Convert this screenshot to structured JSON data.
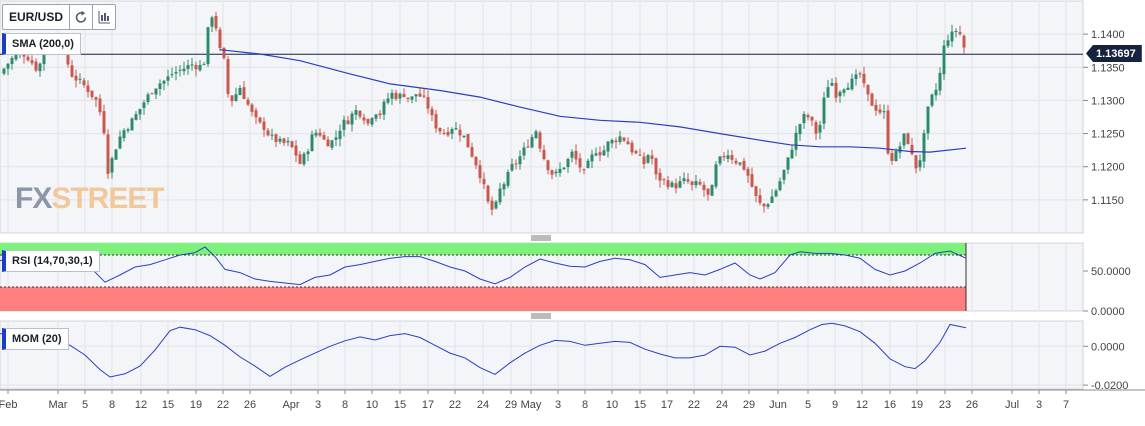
{
  "toolbar": {
    "symbol": "EUR/USD",
    "refresh_icon": "refresh-icon",
    "chart_type_icon": "candlestick-icon"
  },
  "indicators": {
    "sma": "SMA (200,0)",
    "rsi": "RSI (14,70,30,1)",
    "mom": "MOM (20)"
  },
  "price_label": "1.13697",
  "logo": {
    "fx": "FX",
    "street": "STREET"
  },
  "colors": {
    "up": "#2f8a6d",
    "down": "#c9594c",
    "sma": "#2b3fc2",
    "rsi_overbought": "#7df27a",
    "rsi_oversold": "#ff7f7f",
    "price_line": "#15233f"
  },
  "chart_data": [
    {
      "type": "candlestick",
      "symbol": "EUR/USD",
      "x_ticks": [
        "Feb",
        "Mar",
        "5",
        "8",
        "12",
        "15",
        "19",
        "22",
        "26",
        "Apr",
        "3",
        "8",
        "10",
        "15",
        "17",
        "22",
        "24",
        "29",
        "May",
        "3",
        "8",
        "10",
        "15",
        "17",
        "22",
        "24",
        "29",
        "Jun",
        "5",
        "9",
        "12",
        "16",
        "19",
        "23",
        "26",
        "Jul",
        "3",
        "7"
      ],
      "y_ticks": [
        "1.1400",
        "1.1350",
        "1.1300",
        "1.1250",
        "1.1200",
        "1.1150"
      ],
      "y_range": [
        1.11,
        1.145
      ],
      "current_price": 1.13697,
      "close_path": [
        [
          0,
          1.134
        ],
        [
          10,
          1.136
        ],
        [
          20,
          1.1375
        ],
        [
          28,
          1.1365
        ],
        [
          38,
          1.1345
        ],
        [
          45,
          1.138
        ],
        [
          56,
          1.139
        ],
        [
          64,
          1.1375
        ],
        [
          71,
          1.134
        ],
        [
          78,
          1.133
        ],
        [
          86,
          1.132
        ],
        [
          96,
          1.13
        ],
        [
          103,
          1.127
        ],
        [
          108,
          1.1195
        ],
        [
          113,
          1.1215
        ],
        [
          118,
          1.124
        ],
        [
          124,
          1.1255
        ],
        [
          130,
          1.1265
        ],
        [
          137,
          1.128
        ],
        [
          145,
          1.13
        ],
        [
          152,
          1.1315
        ],
        [
          158,
          1.1325
        ],
        [
          165,
          1.133
        ],
        [
          172,
          1.134
        ],
        [
          179,
          1.1345
        ],
        [
          186,
          1.135
        ],
        [
          193,
          1.1355
        ],
        [
          199,
          1.135
        ],
        [
          205,
          1.136
        ],
        [
          210,
          1.1435
        ],
        [
          215,
          1.142
        ],
        [
          220,
          1.1375
        ],
        [
          225,
          1.1355
        ],
        [
          229,
          1.1295
        ],
        [
          234,
          1.1305
        ],
        [
          240,
          1.132
        ],
        [
          246,
          1.13
        ],
        [
          252,
          1.128
        ],
        [
          258,
          1.1265
        ],
        [
          264,
          1.126
        ],
        [
          270,
          1.1245
        ],
        [
          276,
          1.124
        ],
        [
          282,
          1.1235
        ],
        [
          288,
          1.1235
        ],
        [
          294,
          1.1225
        ],
        [
          300,
          1.1205
        ],
        [
          306,
          1.122
        ],
        [
          312,
          1.1245
        ],
        [
          318,
          1.1255
        ],
        [
          324,
          1.124
        ],
        [
          330,
          1.1235
        ],
        [
          336,
          1.1245
        ],
        [
          342,
          1.1265
        ],
        [
          348,
          1.127
        ],
        [
          355,
          1.1285
        ],
        [
          362,
          1.128
        ],
        [
          368,
          1.1265
        ],
        [
          374,
          1.1285
        ],
        [
          380,
          1.128
        ],
        [
          386,
          1.13
        ],
        [
          392,
          1.131
        ],
        [
          398,
          1.1305
        ],
        [
          404,
          1.131
        ],
        [
          410,
          1.13
        ],
        [
          416,
          1.131
        ],
        [
          422,
          1.1305
        ],
        [
          428,
          1.129
        ],
        [
          434,
          1.1265
        ],
        [
          440,
          1.1255
        ],
        [
          446,
          1.125
        ],
        [
          452,
          1.126
        ],
        [
          458,
          1.1255
        ],
        [
          464,
          1.1245
        ],
        [
          470,
          1.1225
        ],
        [
          476,
          1.1205
        ],
        [
          482,
          1.118
        ],
        [
          488,
          1.1145
        ],
        [
          494,
          1.113
        ],
        [
          500,
          1.1165
        ],
        [
          506,
          1.118
        ],
        [
          512,
          1.12
        ],
        [
          518,
          1.121
        ],
        [
          524,
          1.1225
        ],
        [
          530,
          1.124
        ],
        [
          536,
          1.1255
        ],
        [
          542,
          1.122
        ],
        [
          548,
          1.12
        ],
        [
          554,
          1.1185
        ],
        [
          560,
          1.1195
        ],
        [
          566,
          1.1205
        ],
        [
          572,
          1.122
        ],
        [
          578,
          1.1205
        ],
        [
          584,
          1.119
        ],
        [
          590,
          1.121
        ],
        [
          596,
          1.1225
        ],
        [
          602,
          1.122
        ],
        [
          608,
          1.1235
        ],
        [
          614,
          1.124
        ],
        [
          620,
          1.1245
        ],
        [
          626,
          1.124
        ],
        [
          632,
          1.1225
        ],
        [
          638,
          1.1215
        ],
        [
          644,
          1.1205
        ],
        [
          650,
          1.1225
        ],
        [
          656,
          1.1185
        ],
        [
          662,
          1.118
        ],
        [
          668,
          1.1175
        ],
        [
          674,
          1.117
        ],
        [
          680,
          1.1175
        ],
        [
          686,
          1.118
        ],
        [
          692,
          1.117
        ],
        [
          698,
          1.1175
        ],
        [
          704,
          1.1165
        ],
        [
          710,
          1.115
        ],
        [
          716,
          1.12
        ],
        [
          722,
          1.1215
        ],
        [
          728,
          1.122
        ],
        [
          734,
          1.121
        ],
        [
          740,
          1.1205
        ],
        [
          746,
          1.1195
        ],
        [
          752,
          1.117
        ],
        [
          758,
          1.1145
        ],
        [
          764,
          1.114
        ],
        [
          770,
          1.115
        ],
        [
          776,
          1.1165
        ],
        [
          782,
          1.1185
        ],
        [
          788,
          1.121
        ],
        [
          794,
          1.124
        ],
        [
          800,
          1.1265
        ],
        [
          806,
          1.128
        ],
        [
          812,
          1.1265
        ],
        [
          818,
          1.1245
        ],
        [
          824,
          1.13
        ],
        [
          830,
          1.1335
        ],
        [
          836,
          1.131
        ],
        [
          842,
          1.132
        ],
        [
          848,
          1.1325
        ],
        [
          854,
          1.133
        ],
        [
          860,
          1.134
        ],
        [
          866,
          1.131
        ],
        [
          872,
          1.1295
        ],
        [
          878,
          1.1285
        ],
        [
          884,
          1.128
        ],
        [
          888,
          1.1225
        ],
        [
          893,
          1.121
        ],
        [
          898,
          1.1225
        ],
        [
          904,
          1.1245
        ],
        [
          910,
          1.1235
        ],
        [
          914,
          1.1195
        ],
        [
          918,
          1.1205
        ],
        [
          922,
          1.122
        ],
        [
          926,
          1.127
        ],
        [
          930,
          1.13
        ],
        [
          935,
          1.131
        ],
        [
          940,
          1.134
        ],
        [
          944,
          1.138
        ],
        [
          948,
          1.1395
        ],
        [
          953,
          1.14
        ],
        [
          958,
          1.141
        ],
        [
          962,
          1.139
        ],
        [
          966,
          1.137
        ]
      ],
      "sma_path": [
        [
          220,
          1.13765
        ],
        [
          260,
          1.137
        ],
        [
          300,
          1.136
        ],
        [
          350,
          1.134
        ],
        [
          390,
          1.1325
        ],
        [
          440,
          1.1315
        ],
        [
          480,
          1.1305
        ],
        [
          520,
          1.129
        ],
        [
          560,
          1.1276
        ],
        [
          600,
          1.127
        ],
        [
          640,
          1.1267
        ],
        [
          680,
          1.126
        ],
        [
          720,
          1.125
        ],
        [
          760,
          1.124
        ],
        [
          790,
          1.1233
        ],
        [
          820,
          1.123
        ],
        [
          850,
          1.123
        ],
        [
          880,
          1.1228
        ],
        [
          910,
          1.1223
        ],
        [
          930,
          1.1222
        ],
        [
          966,
          1.1228
        ]
      ]
    },
    {
      "type": "line",
      "name": "RSI (14,70,30,1)",
      "y_ticks": [
        "50.0000",
        "0.0000"
      ],
      "y_range": [
        0,
        85
      ],
      "overbought": 70,
      "oversold": 30,
      "path": [
        [
          0,
          63
        ],
        [
          15,
          66
        ],
        [
          30,
          70
        ],
        [
          45,
          66
        ],
        [
          60,
          65
        ],
        [
          75,
          58
        ],
        [
          90,
          55
        ],
        [
          105,
          36
        ],
        [
          120,
          45
        ],
        [
          135,
          55
        ],
        [
          150,
          58
        ],
        [
          165,
          64
        ],
        [
          180,
          70
        ],
        [
          195,
          73
        ],
        [
          205,
          80
        ],
        [
          215,
          68
        ],
        [
          225,
          52
        ],
        [
          240,
          48
        ],
        [
          255,
          40
        ],
        [
          270,
          37
        ],
        [
          285,
          35
        ],
        [
          300,
          33
        ],
        [
          315,
          42
        ],
        [
          330,
          45
        ],
        [
          345,
          55
        ],
        [
          360,
          58
        ],
        [
          375,
          62
        ],
        [
          390,
          66
        ],
        [
          405,
          68
        ],
        [
          420,
          68
        ],
        [
          435,
          62
        ],
        [
          450,
          55
        ],
        [
          465,
          50
        ],
        [
          480,
          40
        ],
        [
          495,
          34
        ],
        [
          510,
          42
        ],
        [
          525,
          55
        ],
        [
          540,
          65
        ],
        [
          555,
          60
        ],
        [
          570,
          56
        ],
        [
          585,
          55
        ],
        [
          600,
          62
        ],
        [
          615,
          66
        ],
        [
          630,
          64
        ],
        [
          645,
          58
        ],
        [
          660,
          42
        ],
        [
          675,
          45
        ],
        [
          690,
          48
        ],
        [
          705,
          45
        ],
        [
          720,
          52
        ],
        [
          735,
          60
        ],
        [
          750,
          45
        ],
        [
          760,
          40
        ],
        [
          775,
          48
        ],
        [
          790,
          70
        ],
        [
          800,
          74
        ],
        [
          815,
          72
        ],
        [
          830,
          72
        ],
        [
          845,
          70
        ],
        [
          860,
          66
        ],
        [
          875,
          52
        ],
        [
          890,
          45
        ],
        [
          905,
          50
        ],
        [
          920,
          60
        ],
        [
          935,
          72
        ],
        [
          950,
          75
        ],
        [
          966,
          66
        ]
      ]
    },
    {
      "type": "line",
      "name": "MOM (20)",
      "y_ticks": [
        "0.0000",
        "-0.0200"
      ],
      "y_range": [
        -0.022,
        0.013
      ],
      "path": [
        [
          0,
          0.0065
        ],
        [
          12,
          0.0058
        ],
        [
          25,
          0.0065
        ],
        [
          40,
          0.0072
        ],
        [
          55,
          0.0045
        ],
        [
          70,
          0.0005
        ],
        [
          85,
          -0.0045
        ],
        [
          100,
          -0.012
        ],
        [
          110,
          -0.0158
        ],
        [
          125,
          -0.0142
        ],
        [
          140,
          -0.0102
        ],
        [
          155,
          -0.002
        ],
        [
          170,
          0.008
        ],
        [
          180,
          0.0098
        ],
        [
          195,
          0.0085
        ],
        [
          210,
          0.0055
        ],
        [
          225,
          0.0005
        ],
        [
          240,
          -0.0055
        ],
        [
          255,
          -0.0102
        ],
        [
          270,
          -0.0155
        ],
        [
          285,
          -0.0108
        ],
        [
          300,
          -0.007
        ],
        [
          315,
          -0.0035
        ],
        [
          330,
          0.0
        ],
        [
          345,
          0.0028
        ],
        [
          360,
          0.0048
        ],
        [
          375,
          0.0032
        ],
        [
          390,
          0.0055
        ],
        [
          405,
          0.0065
        ],
        [
          420,
          0.0045
        ],
        [
          435,
          0.0005
        ],
        [
          450,
          -0.0035
        ],
        [
          465,
          -0.006
        ],
        [
          480,
          -0.011
        ],
        [
          495,
          -0.0145
        ],
        [
          510,
          -0.0085
        ],
        [
          525,
          -0.0035
        ],
        [
          540,
          0.0005
        ],
        [
          555,
          0.003
        ],
        [
          570,
          0.0025
        ],
        [
          585,
          0.0005
        ],
        [
          600,
          0.0015
        ],
        [
          615,
          0.0025
        ],
        [
          630,
          0.002
        ],
        [
          645,
          -0.0015
        ],
        [
          660,
          -0.004
        ],
        [
          675,
          -0.006
        ],
        [
          690,
          -0.006
        ],
        [
          705,
          -0.0045
        ],
        [
          720,
          0.0
        ],
        [
          735,
          -0.0005
        ],
        [
          750,
          -0.0045
        ],
        [
          765,
          -0.0025
        ],
        [
          780,
          0.0015
        ],
        [
          795,
          0.0045
        ],
        [
          810,
          0.0085
        ],
        [
          822,
          0.0112
        ],
        [
          832,
          0.0118
        ],
        [
          845,
          0.0105
        ],
        [
          860,
          0.0075
        ],
        [
          875,
          0.0015
        ],
        [
          890,
          -0.0065
        ],
        [
          905,
          -0.0105
        ],
        [
          915,
          -0.0115
        ],
        [
          925,
          -0.0075
        ],
        [
          940,
          0.002
        ],
        [
          950,
          0.0112
        ],
        [
          966,
          0.0095
        ]
      ]
    }
  ]
}
